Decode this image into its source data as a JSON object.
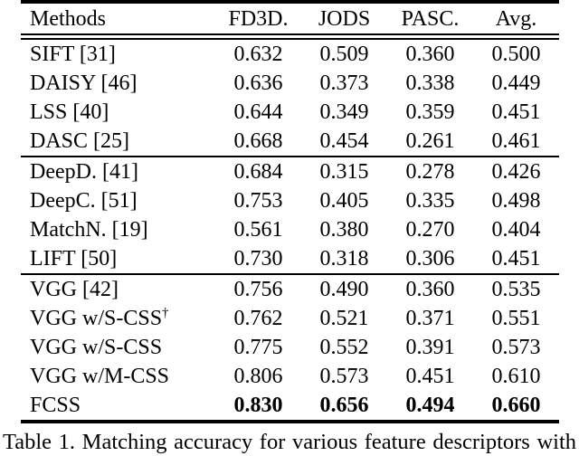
{
  "table": {
    "headers": [
      "Methods",
      "FD3D.",
      "JODS",
      "PASC.",
      "Avg."
    ],
    "sections": [
      {
        "rows": [
          {
            "method": "SIFT [31]",
            "values": [
              "0.632",
              "0.509",
              "0.360",
              "0.500"
            ]
          },
          {
            "method": "DAISY [46]",
            "values": [
              "0.636",
              "0.373",
              "0.338",
              "0.449"
            ]
          },
          {
            "method": "LSS [40]",
            "values": [
              "0.644",
              "0.349",
              "0.359",
              "0.451"
            ]
          },
          {
            "method": "DASC [25]",
            "values": [
              "0.668",
              "0.454",
              "0.261",
              "0.461"
            ]
          }
        ]
      },
      {
        "rows": [
          {
            "method": "DeepD. [41]",
            "values": [
              "0.684",
              "0.315",
              "0.278",
              "0.426"
            ]
          },
          {
            "method": "DeepC. [51]",
            "values": [
              "0.753",
              "0.405",
              "0.335",
              "0.498"
            ]
          },
          {
            "method": "MatchN. [19]",
            "values": [
              "0.561",
              "0.380",
              "0.270",
              "0.404"
            ]
          },
          {
            "method": "LIFT [50]",
            "values": [
              "0.730",
              "0.318",
              "0.306",
              "0.451"
            ]
          }
        ]
      },
      {
        "rows": [
          {
            "method": "VGG [42]",
            "values": [
              "0.756",
              "0.490",
              "0.360",
              "0.535"
            ]
          },
          {
            "method": "VGG w/S-CSS",
            "marker": "†",
            "values": [
              "0.762",
              "0.521",
              "0.371",
              "0.551"
            ]
          },
          {
            "method": "VGG w/S-CSS",
            "values": [
              "0.775",
              "0.552",
              "0.391",
              "0.573"
            ]
          },
          {
            "method": "VGG w/M-CSS",
            "values": [
              "0.806",
              "0.573",
              "0.451",
              "0.610"
            ]
          },
          {
            "method": "FCSS",
            "values": [
              "0.830",
              "0.656",
              "0.494",
              "0.660"
            ],
            "values_bold": true
          }
        ]
      }
    ]
  },
  "caption": {
    "text": "Table 1. Matching accuracy for various feature descriptors with"
  },
  "colors": {
    "text": "#000000",
    "background": "#ffffff",
    "rule": "#000000"
  }
}
